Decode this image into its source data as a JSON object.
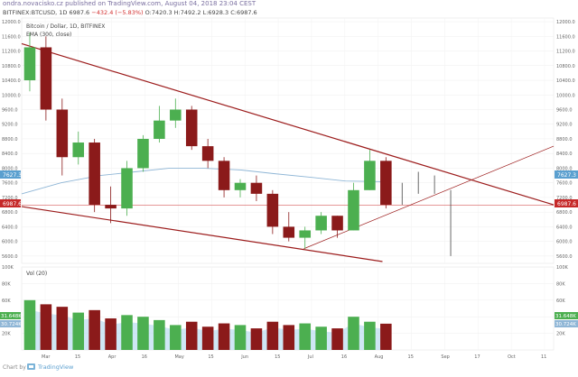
{
  "header": {
    "author_line": "ondra.novacisko.cz published on TradingView.com, August 04, 2018 23:04 CEST",
    "symbol": "BITFINEX:BTCUSD, 1D",
    "last": "6987.6",
    "change": "−432.4 (−5.83%)",
    "ohlc_o": "O:7420.3",
    "ohlc_h": "H:7492.2",
    "ohlc_l": "L:6928.3",
    "ohlc_c": "C:6987.6"
  },
  "legend": {
    "title": "Bitcoin / Dollar, 1D, BITFINEX",
    "ema": "EMA (300, close)",
    "vol": "Vol (20)"
  },
  "price_badges": {
    "ema": "7627.3",
    "last": "6987.6"
  },
  "volume_badges": {
    "v1": "31.648K",
    "v2": "30.724K"
  },
  "footer": {
    "brand": "TradingView"
  },
  "colors": {
    "up": "#4caf50",
    "down": "#8b1a1a",
    "projection": "#444444",
    "ema": "#8fb6d6",
    "trend": "#9c1c1c",
    "volume_ma": "#a8d4ec",
    "hline": "#cc3333"
  },
  "chart_data": [
    {
      "type": "candlestick",
      "title": "Bitcoin / Dollar, 1D, BITFINEX",
      "y_axis": {
        "ticks": [
          "12000.0",
          "11600.0",
          "11200.0",
          "10800.0",
          "10400.0",
          "10000.0",
          "9600.0",
          "9200.0",
          "8800.0",
          "8400.0",
          "8000.0",
          "7600.0",
          "7200.0",
          "6800.0",
          "6400.0",
          "6000.0",
          "5600.0"
        ],
        "range": [
          5400,
          12100
        ]
      },
      "x_axis": {
        "ticks": [
          "Mar",
          "15",
          "Apr",
          "16",
          "May",
          "15",
          "Jun",
          "15",
          "Jul",
          "16",
          "Aug",
          "15",
          "Sep",
          "17",
          "Oct",
          "11"
        ],
        "range_dates": [
          "2018-02-26",
          "2018-10-14"
        ]
      },
      "ohlc_weekly": [
        {
          "week": "2018-02-26",
          "open": 10400,
          "high": 11700,
          "low": 10100,
          "close": 11300
        },
        {
          "week": "2018-03-05",
          "open": 11300,
          "high": 11600,
          "low": 9300,
          "close": 9600
        },
        {
          "week": "2018-03-12",
          "open": 9600,
          "high": 9900,
          "low": 7800,
          "close": 8300
        },
        {
          "week": "2018-03-19",
          "open": 8300,
          "high": 9000,
          "low": 8100,
          "close": 8700
        },
        {
          "week": "2018-03-26",
          "open": 8700,
          "high": 8800,
          "low": 6800,
          "close": 7000
        },
        {
          "week": "2018-04-02",
          "open": 7000,
          "high": 7500,
          "low": 6500,
          "close": 6900
        },
        {
          "week": "2018-04-09",
          "open": 6900,
          "high": 8200,
          "low": 6700,
          "close": 8000
        },
        {
          "week": "2018-04-16",
          "open": 8000,
          "high": 8900,
          "low": 7900,
          "close": 8800
        },
        {
          "week": "2018-04-23",
          "open": 8800,
          "high": 9700,
          "low": 8700,
          "close": 9300
        },
        {
          "week": "2018-04-30",
          "open": 9300,
          "high": 9900,
          "low": 9100,
          "close": 9600
        },
        {
          "week": "2018-05-07",
          "open": 9600,
          "high": 9700,
          "low": 8500,
          "close": 8600
        },
        {
          "week": "2018-05-14",
          "open": 8600,
          "high": 8800,
          "low": 8000,
          "close": 8200
        },
        {
          "week": "2018-05-21",
          "open": 8200,
          "high": 8300,
          "low": 7200,
          "close": 7400
        },
        {
          "week": "2018-05-28",
          "open": 7400,
          "high": 7700,
          "low": 7200,
          "close": 7600
        },
        {
          "week": "2018-06-04",
          "open": 7600,
          "high": 7800,
          "low": 7100,
          "close": 7300
        },
        {
          "week": "2018-06-11",
          "open": 7300,
          "high": 7400,
          "low": 6200,
          "close": 6400
        },
        {
          "week": "2018-06-18",
          "open": 6400,
          "high": 6800,
          "low": 6000,
          "close": 6100
        },
        {
          "week": "2018-06-25",
          "open": 6100,
          "high": 6400,
          "low": 5800,
          "close": 6300
        },
        {
          "week": "2018-07-02",
          "open": 6300,
          "high": 6800,
          "low": 6200,
          "close": 6700
        },
        {
          "week": "2018-07-09",
          "open": 6700,
          "high": 6700,
          "low": 6100,
          "close": 6300
        },
        {
          "week": "2018-07-16",
          "open": 6300,
          "high": 7600,
          "low": 6300,
          "close": 7400
        },
        {
          "week": "2018-07-23",
          "open": 7400,
          "high": 8500,
          "low": 7400,
          "close": 8200
        },
        {
          "week": "2018-07-30",
          "open": 8200,
          "high": 8300,
          "low": 6900,
          "close": 7000
        }
      ],
      "ema_300": [
        {
          "date": "2018-02-26",
          "value": 7300
        },
        {
          "date": "2018-03-15",
          "value": 7600
        },
        {
          "date": "2018-04-01",
          "value": 7800
        },
        {
          "date": "2018-04-16",
          "value": 7900
        },
        {
          "date": "2018-05-01",
          "value": 8000
        },
        {
          "date": "2018-05-15",
          "value": 8000
        },
        {
          "date": "2018-06-01",
          "value": 7950
        },
        {
          "date": "2018-06-15",
          "value": 7850
        },
        {
          "date": "2018-07-01",
          "value": 7750
        },
        {
          "date": "2018-07-16",
          "value": 7650
        },
        {
          "date": "2018-08-04",
          "value": 7627
        }
      ],
      "projection_weekly": [
        {
          "week": "2018-08-06",
          "open": 7000,
          "high": 7600,
          "low": 7000,
          "close": 7500
        },
        {
          "week": "2018-08-13",
          "open": 7500,
          "high": 7900,
          "low": 7300,
          "close": 7700
        },
        {
          "week": "2018-08-20",
          "open": 7700,
          "high": 7800,
          "low": 7300,
          "close": 7400
        },
        {
          "week": "2018-08-27",
          "open": 7400,
          "high": 7400,
          "low": 5600,
          "close": 6200
        }
      ],
      "trendlines": [
        {
          "name": "upper",
          "from": {
            "date": "2018-02-26",
            "value": 11400
          },
          "to": {
            "date": "2018-10-14",
            "value": 7000
          }
        },
        {
          "name": "lower",
          "from": {
            "date": "2018-02-26",
            "value": 6950
          },
          "to": {
            "date": "2018-08-01",
            "value": 5450
          }
        },
        {
          "name": "support",
          "from": {
            "date": "2018-06-28",
            "value": 5800
          },
          "to": {
            "date": "2018-10-14",
            "value": 8600
          }
        }
      ],
      "horizontal_line": {
        "value": 6987.6
      },
      "volume": {
        "ticks": [
          "100K",
          "80K",
          "60K",
          "40K",
          "20K"
        ],
        "range": [
          0,
          100000
        ],
        "weekly": [
          60000,
          55000,
          52000,
          45000,
          48000,
          38000,
          42000,
          40000,
          36000,
          30000,
          34000,
          28000,
          32000,
          30000,
          26000,
          34000,
          30000,
          32000,
          28000,
          26000,
          40000,
          34000,
          31648
        ]
      }
    }
  ]
}
